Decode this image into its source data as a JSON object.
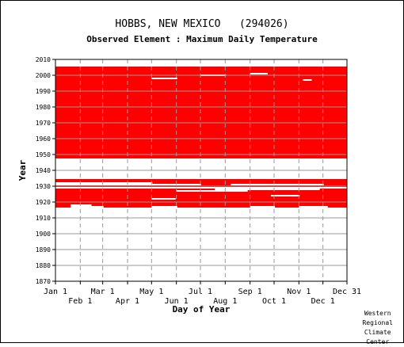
{
  "chart_data": {
    "type": "heatmap",
    "title": "HOBBS, NEW MEXICO   (294026)",
    "subtitle": "Observed Element : Maximum Daily Temperature",
    "xlabel": "Day of Year",
    "ylabel": "Year",
    "ylim": [
      1870,
      2010
    ],
    "xlim": [
      1,
      365
    ],
    "y_ticks": [
      1870,
      1880,
      1890,
      1900,
      1910,
      1920,
      1930,
      1940,
      1950,
      1960,
      1970,
      1980,
      1990,
      2000,
      2010
    ],
    "x_ticks_top_row": [
      {
        "label": "Jan 1",
        "day": 1
      },
      {
        "label": "Mar 1",
        "day": 60
      },
      {
        "label": "May 1",
        "day": 121
      },
      {
        "label": "Jul 1",
        "day": 182
      },
      {
        "label": "Sep 1",
        "day": 244
      },
      {
        "label": "Nov 1",
        "day": 305
      },
      {
        "label": "Dec 31",
        "day": 365
      }
    ],
    "x_ticks_bottom_row": [
      {
        "label": "Feb 1",
        "day": 32
      },
      {
        "label": "Apr 1",
        "day": 91
      },
      {
        "label": "Jun 1",
        "day": 152
      },
      {
        "label": "Aug 1",
        "day": 213
      },
      {
        "label": "Oct 1",
        "day": 274
      },
      {
        "label": "Dec 1",
        "day": 335
      }
    ],
    "grid": true,
    "data_color": "#ff0000",
    "observed_periods": [
      {
        "year_start": 1916.5,
        "year_end": 1918.5,
        "day_start": 1,
        "day_end": 365
      },
      {
        "year_start": 1918.5,
        "year_end": 1928.5,
        "day_start": 1,
        "day_end": 365
      },
      {
        "year_start": 1928.5,
        "year_end": 1934.5,
        "day_start": 1,
        "day_end": 365
      },
      {
        "year_start": 1947.5,
        "year_end": 2005.5,
        "day_start": 1,
        "day_end": 365
      }
    ],
    "missing_periods": [
      {
        "year_start": 1916.5,
        "year_end": 1918.5,
        "day_start": 20,
        "day_end": 45
      },
      {
        "year_start": 1916.5,
        "year_end": 1917.5,
        "day_start": 46,
        "day_end": 60
      },
      {
        "year_start": 1916.5,
        "year_end": 1917.5,
        "day_start": 121,
        "day_end": 152
      },
      {
        "year_start": 1916.5,
        "year_end": 1917.5,
        "day_start": 244,
        "day_end": 274
      },
      {
        "year_start": 1916.5,
        "year_end": 1917.5,
        "day_start": 305,
        "day_end": 340
      },
      {
        "year_start": 1928.5,
        "year_end": 1929.5,
        "day_start": 1,
        "day_end": 365
      },
      {
        "year_start": 1930.5,
        "year_end": 1932.5,
        "day_start": 1,
        "day_end": 60
      },
      {
        "year_start": 1930.5,
        "year_end": 1932.5,
        "day_start": 60,
        "day_end": 121
      },
      {
        "year_start": 1930.5,
        "year_end": 1931.5,
        "day_start": 121,
        "day_end": 182
      },
      {
        "year_start": 1930.5,
        "year_end": 1931.5,
        "day_start": 220,
        "day_end": 335
      },
      {
        "year_start": 1927.5,
        "year_end": 1928.5,
        "day_start": 200,
        "day_end": 330
      },
      {
        "year_start": 1921.5,
        "year_end": 1922.5,
        "day_start": 121,
        "day_end": 150
      },
      {
        "year_start": 1923.5,
        "year_end": 1924.5,
        "day_start": 270,
        "day_end": 305
      },
      {
        "year_start": 1926.5,
        "year_end": 1927.5,
        "day_start": 152,
        "day_end": 240
      },
      {
        "year_start": 1997.5,
        "year_end": 1998.5,
        "day_start": 121,
        "day_end": 152
      },
      {
        "year_start": 1999.5,
        "year_end": 2000.5,
        "day_start": 182,
        "day_end": 213
      },
      {
        "year_start": 1996.5,
        "year_end": 1997.5,
        "day_start": 310,
        "day_end": 320
      },
      {
        "year_start": 2000.5,
        "year_end": 2001.5,
        "day_start": 244,
        "day_end": 265
      }
    ]
  },
  "credit": [
    "Western",
    "Regional",
    "Climate",
    "Center"
  ]
}
